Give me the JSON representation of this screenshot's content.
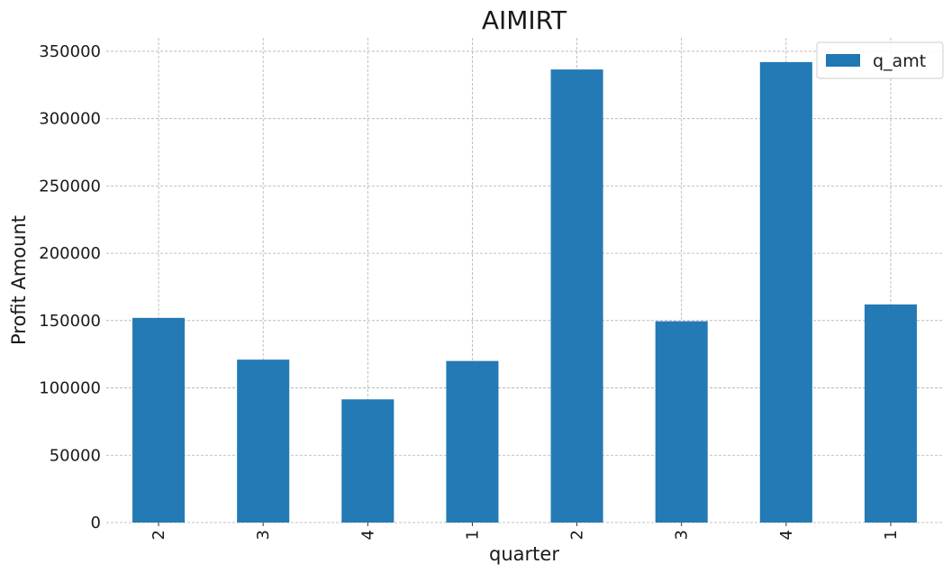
{
  "chart_data": {
    "type": "bar",
    "title": "AIMIRT",
    "xlabel": "quarter",
    "ylabel": "Profit Amount",
    "categories": [
      "2",
      "3",
      "4",
      "1",
      "2",
      "3",
      "4",
      "1"
    ],
    "series": [
      {
        "name": "q_amt",
        "values": [
          152000,
          121000,
          91500,
          120000,
          336500,
          149500,
          342000,
          162000
        ],
        "color": "#1f77b4"
      }
    ],
    "ylim": [
      0,
      360000
    ],
    "yticks": [
      0,
      50000,
      100000,
      150000,
      200000,
      250000,
      300000,
      350000
    ],
    "grid": true,
    "legend_position": "top-right"
  }
}
